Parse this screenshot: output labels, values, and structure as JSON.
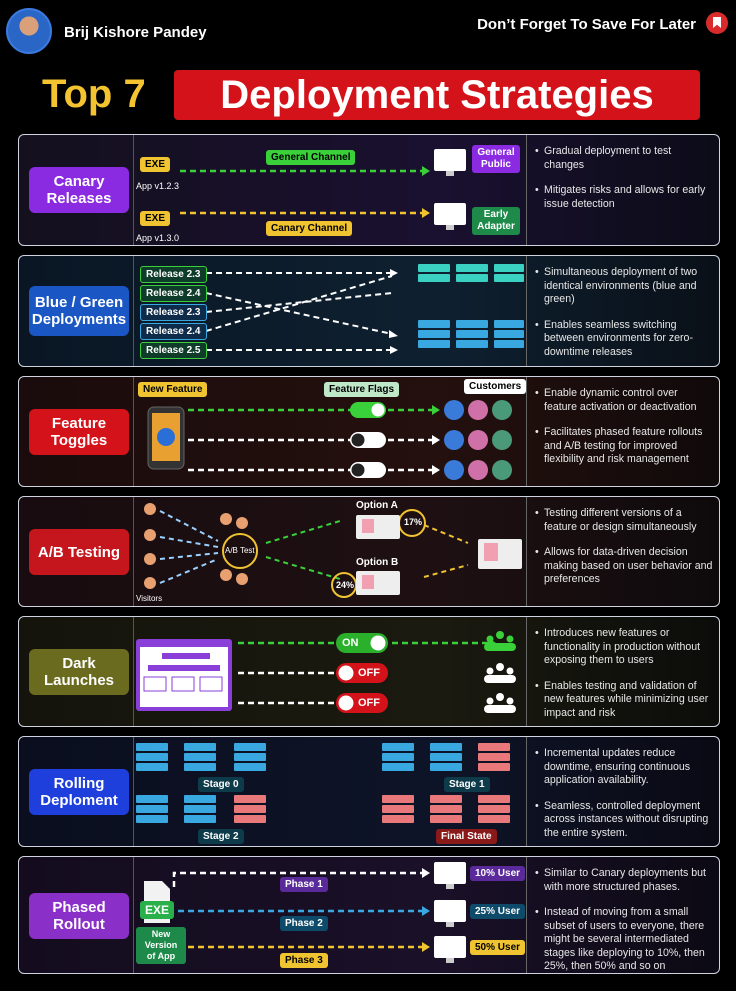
{
  "header": {
    "author": "Brij Kishore Pandey",
    "save_text": "Don’t Forget To Save For Later"
  },
  "title": {
    "part1": "Top 7",
    "part2": "Deployment Strategies"
  },
  "colors": {
    "canary": "#8a2be2",
    "bluegreen": "#1a57c4",
    "feature": "#d3121a",
    "abtest": "#c4161c",
    "dark": "#6b6b1f",
    "rolling": "#1f3fdc",
    "phased": "#8b2fc9",
    "green": "#3ad03a",
    "yellow": "#f0c330",
    "white": "#ffffff"
  },
  "sections": [
    {
      "label": "Canary Releases",
      "exe": "EXE",
      "app1": "App v1.2.3",
      "app2": "App v1.3.0",
      "channel1": "General Channel",
      "channel2": "Canary Channel",
      "target1": "General Public",
      "target2": "Early Adapter",
      "bullets": [
        "Gradual deployment to test changes",
        "Mitigates risks and allows for early issue detection"
      ]
    },
    {
      "label": "Blue / Green Deployments",
      "releases": [
        "Release 2.3",
        "Release 2.4",
        "Release 2.3",
        "Release 2.4",
        "Release 2.5"
      ],
      "bullets": [
        "Simultaneous deployment of two identical environments (blue and green)",
        "Enables seamless switching between environments for zero-downtime releases"
      ]
    },
    {
      "label": "Feature Toggles",
      "new_feature": "New Feature",
      "flags": "Feature Flags",
      "customers": "Customers",
      "bullets": [
        "Enable dynamic control over feature activation or deactivation",
        "Facilitates phased feature rollouts and A/B testing for improved flexibility and risk management"
      ]
    },
    {
      "label": "A/B Testing",
      "hub": "A/B Test",
      "visitors": "Visitors",
      "option_a": "Option A",
      "option_b": "Option B",
      "pct_a": "17%",
      "pct_b": "24%",
      "bullets": [
        "Testing different versions of a feature or design simultaneously",
        "Allows for data-driven decision making based on user behavior and preferences"
      ]
    },
    {
      "label": "Dark Launches",
      "on": "ON",
      "off1": "OFF",
      "off2": "OFF",
      "bullets": [
        "Introduces new features or functionality in production without exposing them to users",
        "Enables testing and validation of new features while minimizing user impact and risk"
      ]
    },
    {
      "label": "Rolling Deploment",
      "stage0": "Stage 0",
      "stage1": "Stage 1",
      "stage2": "Stage 2",
      "final": "Final State",
      "bullets": [
        "Incremental updates reduce downtime, ensuring continuous application availability.",
        "Seamless, controlled deployment across instances without disrupting the entire system."
      ]
    },
    {
      "label": "Phased Rollout",
      "exe": "EXE",
      "new_version": "New Version of App",
      "phase1": "Phase 1",
      "phase2": "Phase 2",
      "phase3": "Phase 3",
      "u1": "10% User",
      "u2": "25% User",
      "u3": "50% User",
      "bullets": [
        "Similar to Canary deployments but with more structured phases.",
        "Instead of moving from a small subset of users to everyone, there might be several intermediated stages like deploying to 10%, then 25%, then 50% and so on"
      ]
    }
  ]
}
